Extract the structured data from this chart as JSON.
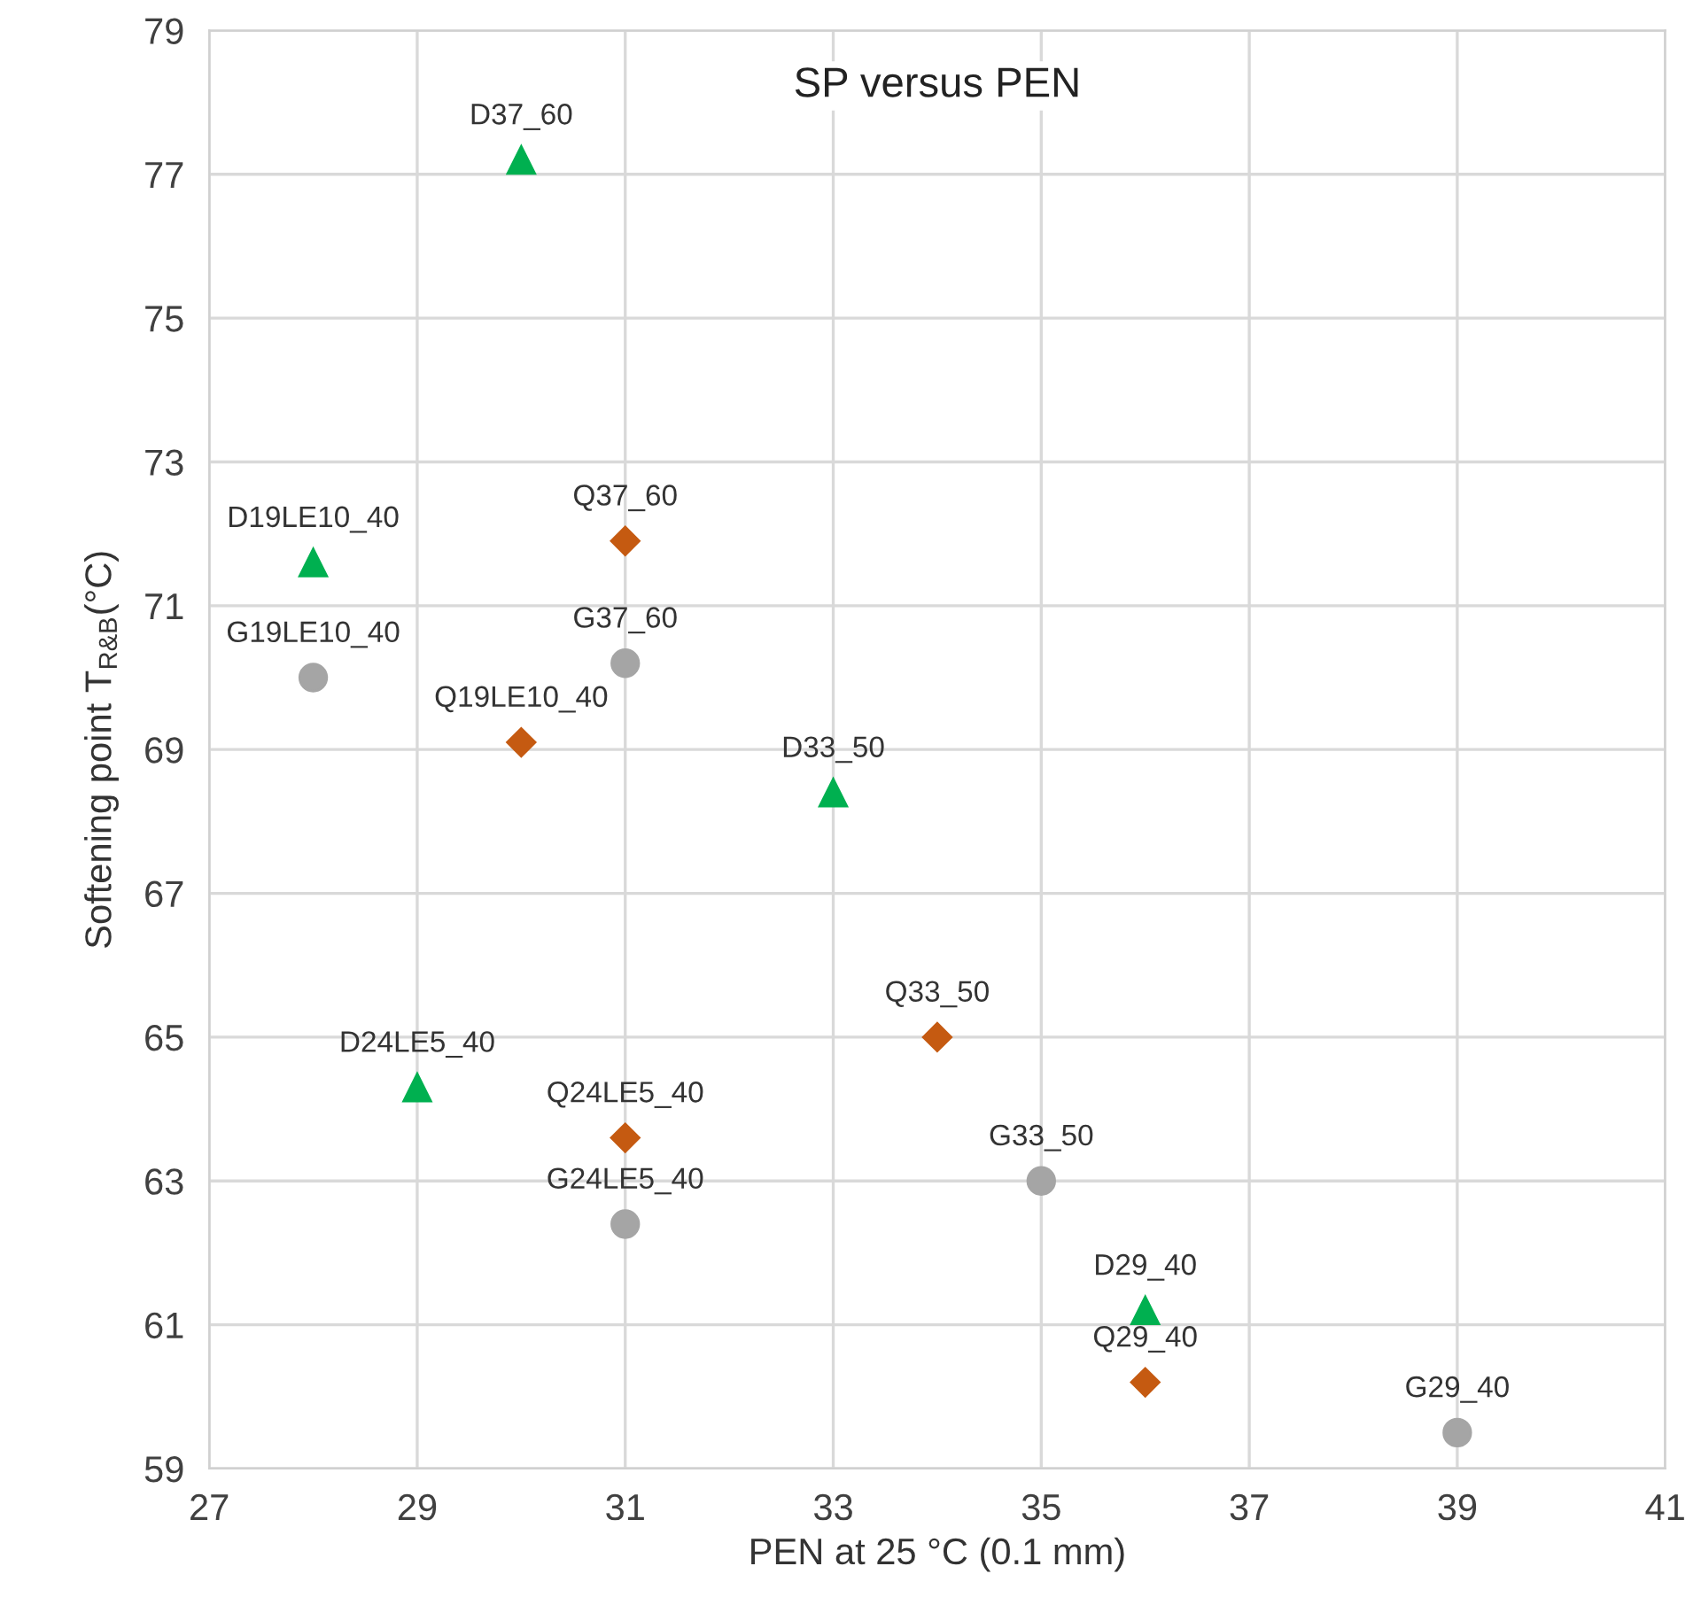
{
  "chart_data": {
    "type": "scatter",
    "title": "SP versus PEN",
    "xlabel": "PEN at 25 °C (0.1 mm)",
    "ylabel": "Softening point T$_{R&B}$(°C)",
    "xlim": [
      27,
      41
    ],
    "xticks": [
      27,
      29,
      31,
      33,
      35,
      37,
      39,
      41
    ],
    "ylim": [
      59,
      79
    ],
    "yticks": [
      59,
      61,
      63,
      65,
      67,
      69,
      71,
      73,
      75,
      77,
      79
    ],
    "grid": true,
    "legend": false,
    "series": [
      {
        "color": "#00b050",
        "marker": "triangle",
        "x": [
          30,
          33,
          36
        ],
        "values": [
          77.2,
          68.4,
          61.2
        ]
      },
      {
        "color": "#00b050",
        "marker": "triangle",
        "x": [
          28,
          29
        ],
        "values": [
          71.6,
          64.3
        ]
      },
      {
        "color": "#c55a11",
        "marker": "diamond",
        "x": [
          31,
          34,
          36
        ],
        "values": [
          71.9,
          65.0,
          60.2
        ]
      },
      {
        "color": "#c55a11",
        "marker": "diamond",
        "x": [
          30,
          31
        ],
        "values": [
          69.1,
          63.6
        ]
      },
      {
        "color": "#a5a5a5",
        "marker": "circle",
        "x": [
          31,
          35,
          39
        ],
        "values": [
          70.2,
          63.0,
          59.5
        ]
      },
      {
        "color": "#a5a5a5",
        "marker": "circle",
        "x": [
          28,
          31
        ],
        "values": [
          70.0,
          62.4
        ]
      }
    ],
    "annotations": [
      {
        "text": "D37_60",
        "x": 30,
        "y": 77.2
      },
      {
        "text": "D33_50",
        "x": 33,
        "y": 68.4
      },
      {
        "text": "D29_40",
        "x": 36,
        "y": 61.2
      },
      {
        "text": "D19LE10_40",
        "x": 28,
        "y": 71.6
      },
      {
        "text": "D24LE5_40",
        "x": 29,
        "y": 64.3
      },
      {
        "text": "Q37_60",
        "x": 31,
        "y": 71.9
      },
      {
        "text": "Q33_50",
        "x": 34,
        "y": 65.0
      },
      {
        "text": "Q29_40",
        "x": 36,
        "y": 60.2
      },
      {
        "text": "Q19LE10_40",
        "x": 30,
        "y": 69.1
      },
      {
        "text": "Q24LE5_40",
        "x": 31,
        "y": 63.6
      },
      {
        "text": "G37_60",
        "x": 31,
        "y": 70.2
      },
      {
        "text": "G33_50",
        "x": 35,
        "y": 63.0
      },
      {
        "text": "G29_40",
        "x": 39,
        "y": 59.5
      },
      {
        "text": "G19LE10_40",
        "x": 28,
        "y": 70.0
      },
      {
        "text": "G24LE5_40",
        "x": 31,
        "y": 62.4
      }
    ]
  }
}
